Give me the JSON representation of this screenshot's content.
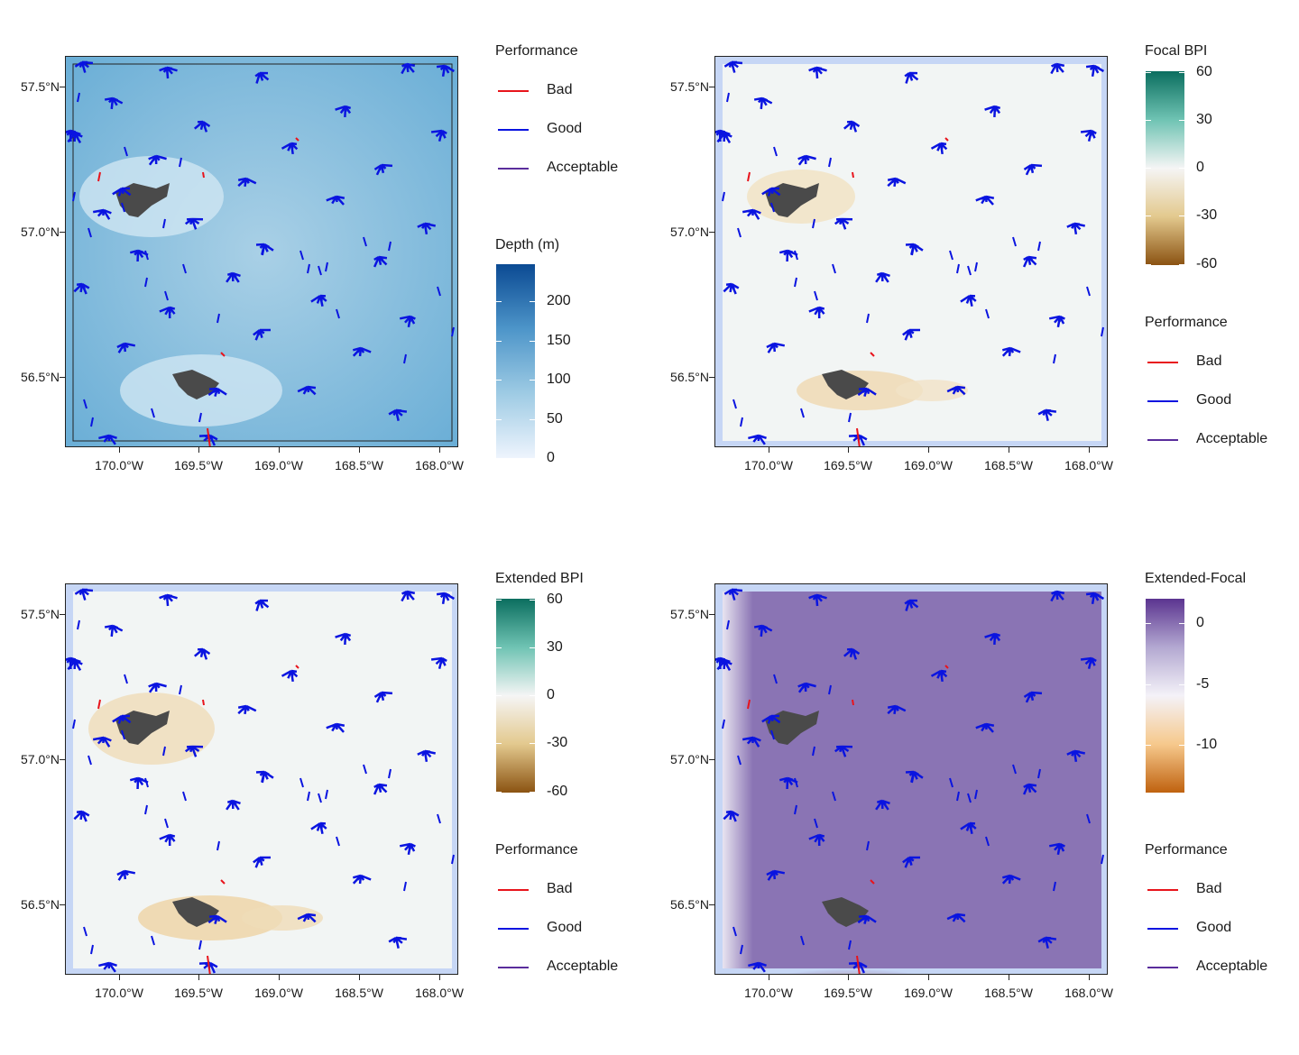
{
  "axes": {
    "lat_ticks": [
      "57.5°N",
      "57.0°N",
      "56.5°N"
    ],
    "lon_ticks": [
      "170.0°W",
      "169.5°W",
      "169.0°W",
      "168.5°W",
      "168.0°W"
    ]
  },
  "performance_legend": {
    "title": "Performance",
    "items": [
      {
        "label": "Bad",
        "color": "#e8141c"
      },
      {
        "label": "Good",
        "color": "#0a14e0"
      },
      {
        "label": "Acceptable",
        "color": "#5a2d9c"
      }
    ]
  },
  "panels": [
    {
      "id": "depth",
      "colorbar_title": "Depth (m)",
      "colorbar_ticks": [
        "200",
        "150",
        "100",
        "50",
        "0"
      ],
      "colors": {
        "top": "#0b4a93",
        "bottom": "#eef4fd"
      }
    },
    {
      "id": "focal-bpi",
      "colorbar_title": "Focal BPI",
      "colorbar_ticks": [
        "60",
        "30",
        "0",
        "-30",
        "-60"
      ],
      "colors": {
        "top": "#0b6e5f",
        "bottom": "#8b5312"
      }
    },
    {
      "id": "extended-bpi",
      "colorbar_title": "Extended BPI",
      "colorbar_ticks": [
        "60",
        "30",
        "0",
        "-30",
        "-60"
      ],
      "colors": {
        "top": "#0b6e5f",
        "bottom": "#8b5312"
      }
    },
    {
      "id": "extended-focal",
      "colorbar_title": "Extended-Focal",
      "colorbar_ticks": [
        "0",
        "-5",
        "-10"
      ],
      "colors": {
        "top": "#5b3490",
        "bottom": "#c0620f"
      }
    }
  ]
}
